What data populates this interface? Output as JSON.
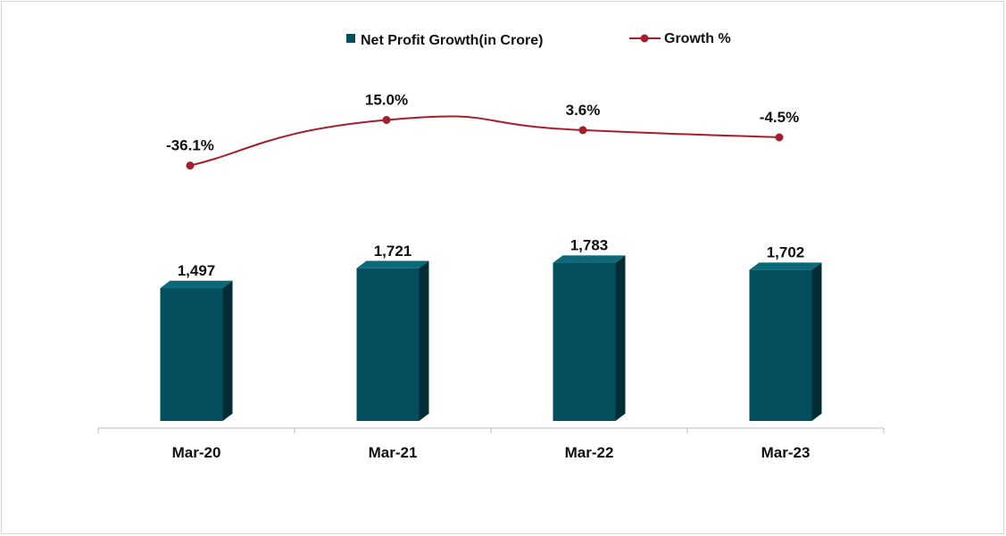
{
  "chart_data": {
    "type": "bar",
    "categories": [
      "Mar-20",
      "Mar-21",
      "Mar-22",
      "Mar-23"
    ],
    "series": [
      {
        "name": "Net Profit Growth(in Crore)",
        "type": "bar",
        "values": [
          1497,
          1721,
          1783,
          1702
        ],
        "labels": [
          "1,497",
          "1,721",
          "1,783",
          "1,702"
        ]
      },
      {
        "name": "Growth %",
        "type": "line",
        "values": [
          -36.1,
          15.0,
          3.6,
          -4.5
        ],
        "labels": [
          "-36.1%",
          "15.0%",
          "3.6%",
          "-4.5%"
        ]
      }
    ],
    "legend_position": "top",
    "grid": false,
    "colors": {
      "bar": "#034f5e",
      "bar_side": "#022d36",
      "bar_top": "#0b6a7a",
      "line": "#a51e2d",
      "axis": "#bfbfbf"
    }
  }
}
